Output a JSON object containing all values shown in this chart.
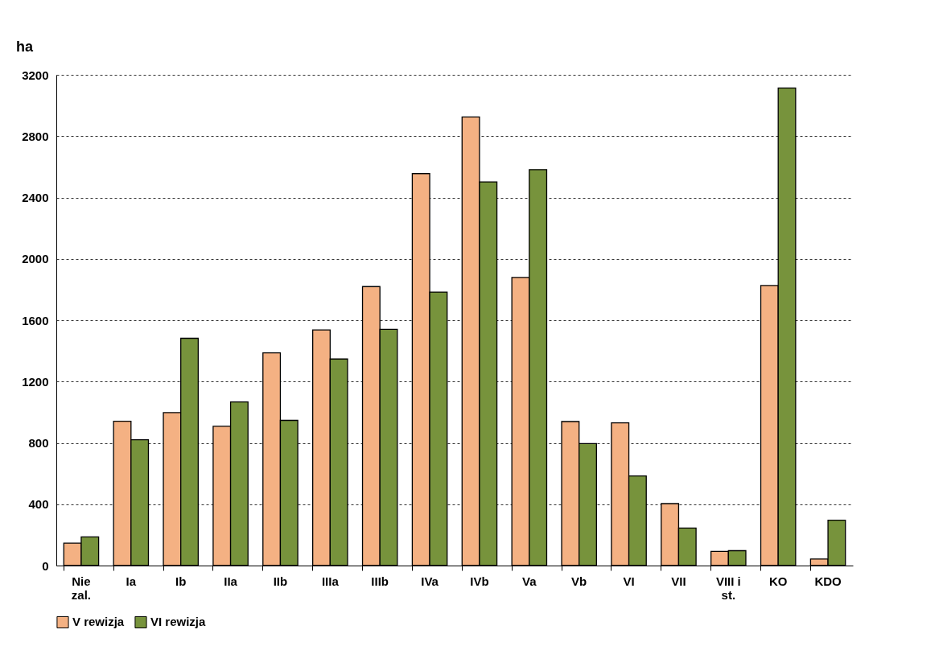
{
  "chart_data": {
    "type": "bar",
    "ylabel": "ha",
    "categories": [
      "Nie zal.",
      "Ia",
      "Ib",
      "IIa",
      "IIb",
      "IIIa",
      "IIIb",
      "IVa",
      "IVb",
      "Va",
      "Vb",
      "VI",
      "VII",
      "VIII i st.",
      "KO",
      "KDO"
    ],
    "series": [
      {
        "name": "V rewizja",
        "color": "#f4b183",
        "values": [
          146,
          941,
          997,
          908,
          1387,
          1536,
          1819,
          2556,
          2925,
          1879,
          939,
          930,
          404,
          92,
          1826,
          43
        ]
      },
      {
        "name": "VI rewizja",
        "color": "#77933c",
        "values": [
          187,
          820,
          1482,
          1067,
          947,
          1347,
          1540,
          1783,
          2502,
          2582,
          795,
          584,
          245,
          97,
          3114,
          296
        ]
      }
    ],
    "ylim": [
      0,
      3200
    ],
    "yticks": [
      0,
      400,
      800,
      1200,
      1600,
      2000,
      2400,
      2800,
      3200
    ],
    "grid": "y",
    "legend": "bottom"
  }
}
